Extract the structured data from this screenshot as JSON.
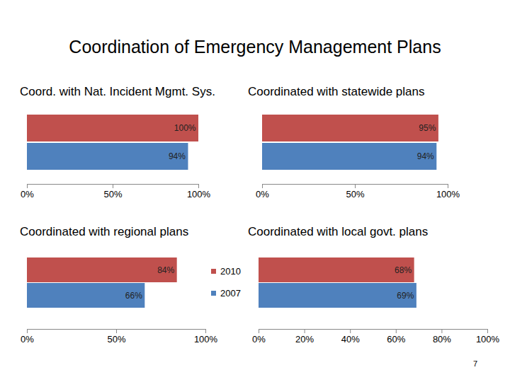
{
  "title": "Coordination of Emergency Management Plans",
  "page_number": 7,
  "chart_data": [
    {
      "type": "bar",
      "orientation": "horizontal",
      "title": "Coord. with Nat. Incident Mgmt. Sys.",
      "categories": [
        null
      ],
      "series": [
        {
          "name": "2010",
          "color": "#c0504d",
          "values": [
            100
          ],
          "value_labels": [
            "100%"
          ]
        },
        {
          "name": "2007",
          "color": "#4f81bd",
          "values": [
            94
          ],
          "value_labels": [
            "94%"
          ]
        }
      ],
      "xlim": [
        0,
        100
      ],
      "xticks": [
        {
          "value": 0,
          "label": "0%"
        },
        {
          "value": 50,
          "label": "50%"
        },
        {
          "value": 100,
          "label": "100%"
        }
      ],
      "data_labels": true
    },
    {
      "type": "bar",
      "orientation": "horizontal",
      "title": "Coordinated with statewide plans",
      "categories": [
        null
      ],
      "series": [
        {
          "name": "2010",
          "color": "#c0504d",
          "values": [
            95
          ],
          "value_labels": [
            "95%"
          ]
        },
        {
          "name": "2007",
          "color": "#4f81bd",
          "values": [
            94
          ],
          "value_labels": [
            "94%"
          ]
        }
      ],
      "xlim": [
        0,
        100
      ],
      "xticks": [
        {
          "value": 0,
          "label": "0%"
        },
        {
          "value": 50,
          "label": "50%"
        },
        {
          "value": 100,
          "label": "100%"
        }
      ],
      "data_labels": true
    },
    {
      "type": "bar",
      "orientation": "horizontal",
      "title": "Coordinated with regional plans",
      "categories": [
        null
      ],
      "series": [
        {
          "name": "2010",
          "color": "#c0504d",
          "values": [
            84
          ],
          "value_labels": [
            "84%"
          ]
        },
        {
          "name": "2007",
          "color": "#4f81bd",
          "values": [
            66
          ],
          "value_labels": [
            "66%"
          ]
        }
      ],
      "xlim": [
        0,
        100
      ],
      "xticks": [
        {
          "value": 0,
          "label": "0%"
        },
        {
          "value": 50,
          "label": "50%"
        },
        {
          "value": 100,
          "label": "100%"
        }
      ],
      "data_labels": true,
      "legend": "right"
    },
    {
      "type": "bar",
      "orientation": "horizontal",
      "title": "Coordinated with local govt. plans",
      "categories": [
        null
      ],
      "series": [
        {
          "name": "2010",
          "color": "#c0504d",
          "values": [
            68
          ],
          "value_labels": [
            "68%"
          ]
        },
        {
          "name": "2007",
          "color": "#4f81bd",
          "values": [
            69
          ],
          "value_labels": [
            "69%"
          ]
        }
      ],
      "xlim": [
        0,
        100
      ],
      "xticks": [
        {
          "value": 0,
          "label": "0%"
        },
        {
          "value": 20,
          "label": "20%"
        },
        {
          "value": 40,
          "label": "40%"
        },
        {
          "value": 60,
          "label": "60%"
        },
        {
          "value": 80,
          "label": "80%"
        },
        {
          "value": 100,
          "label": "100%"
        }
      ],
      "data_labels": true
    }
  ]
}
